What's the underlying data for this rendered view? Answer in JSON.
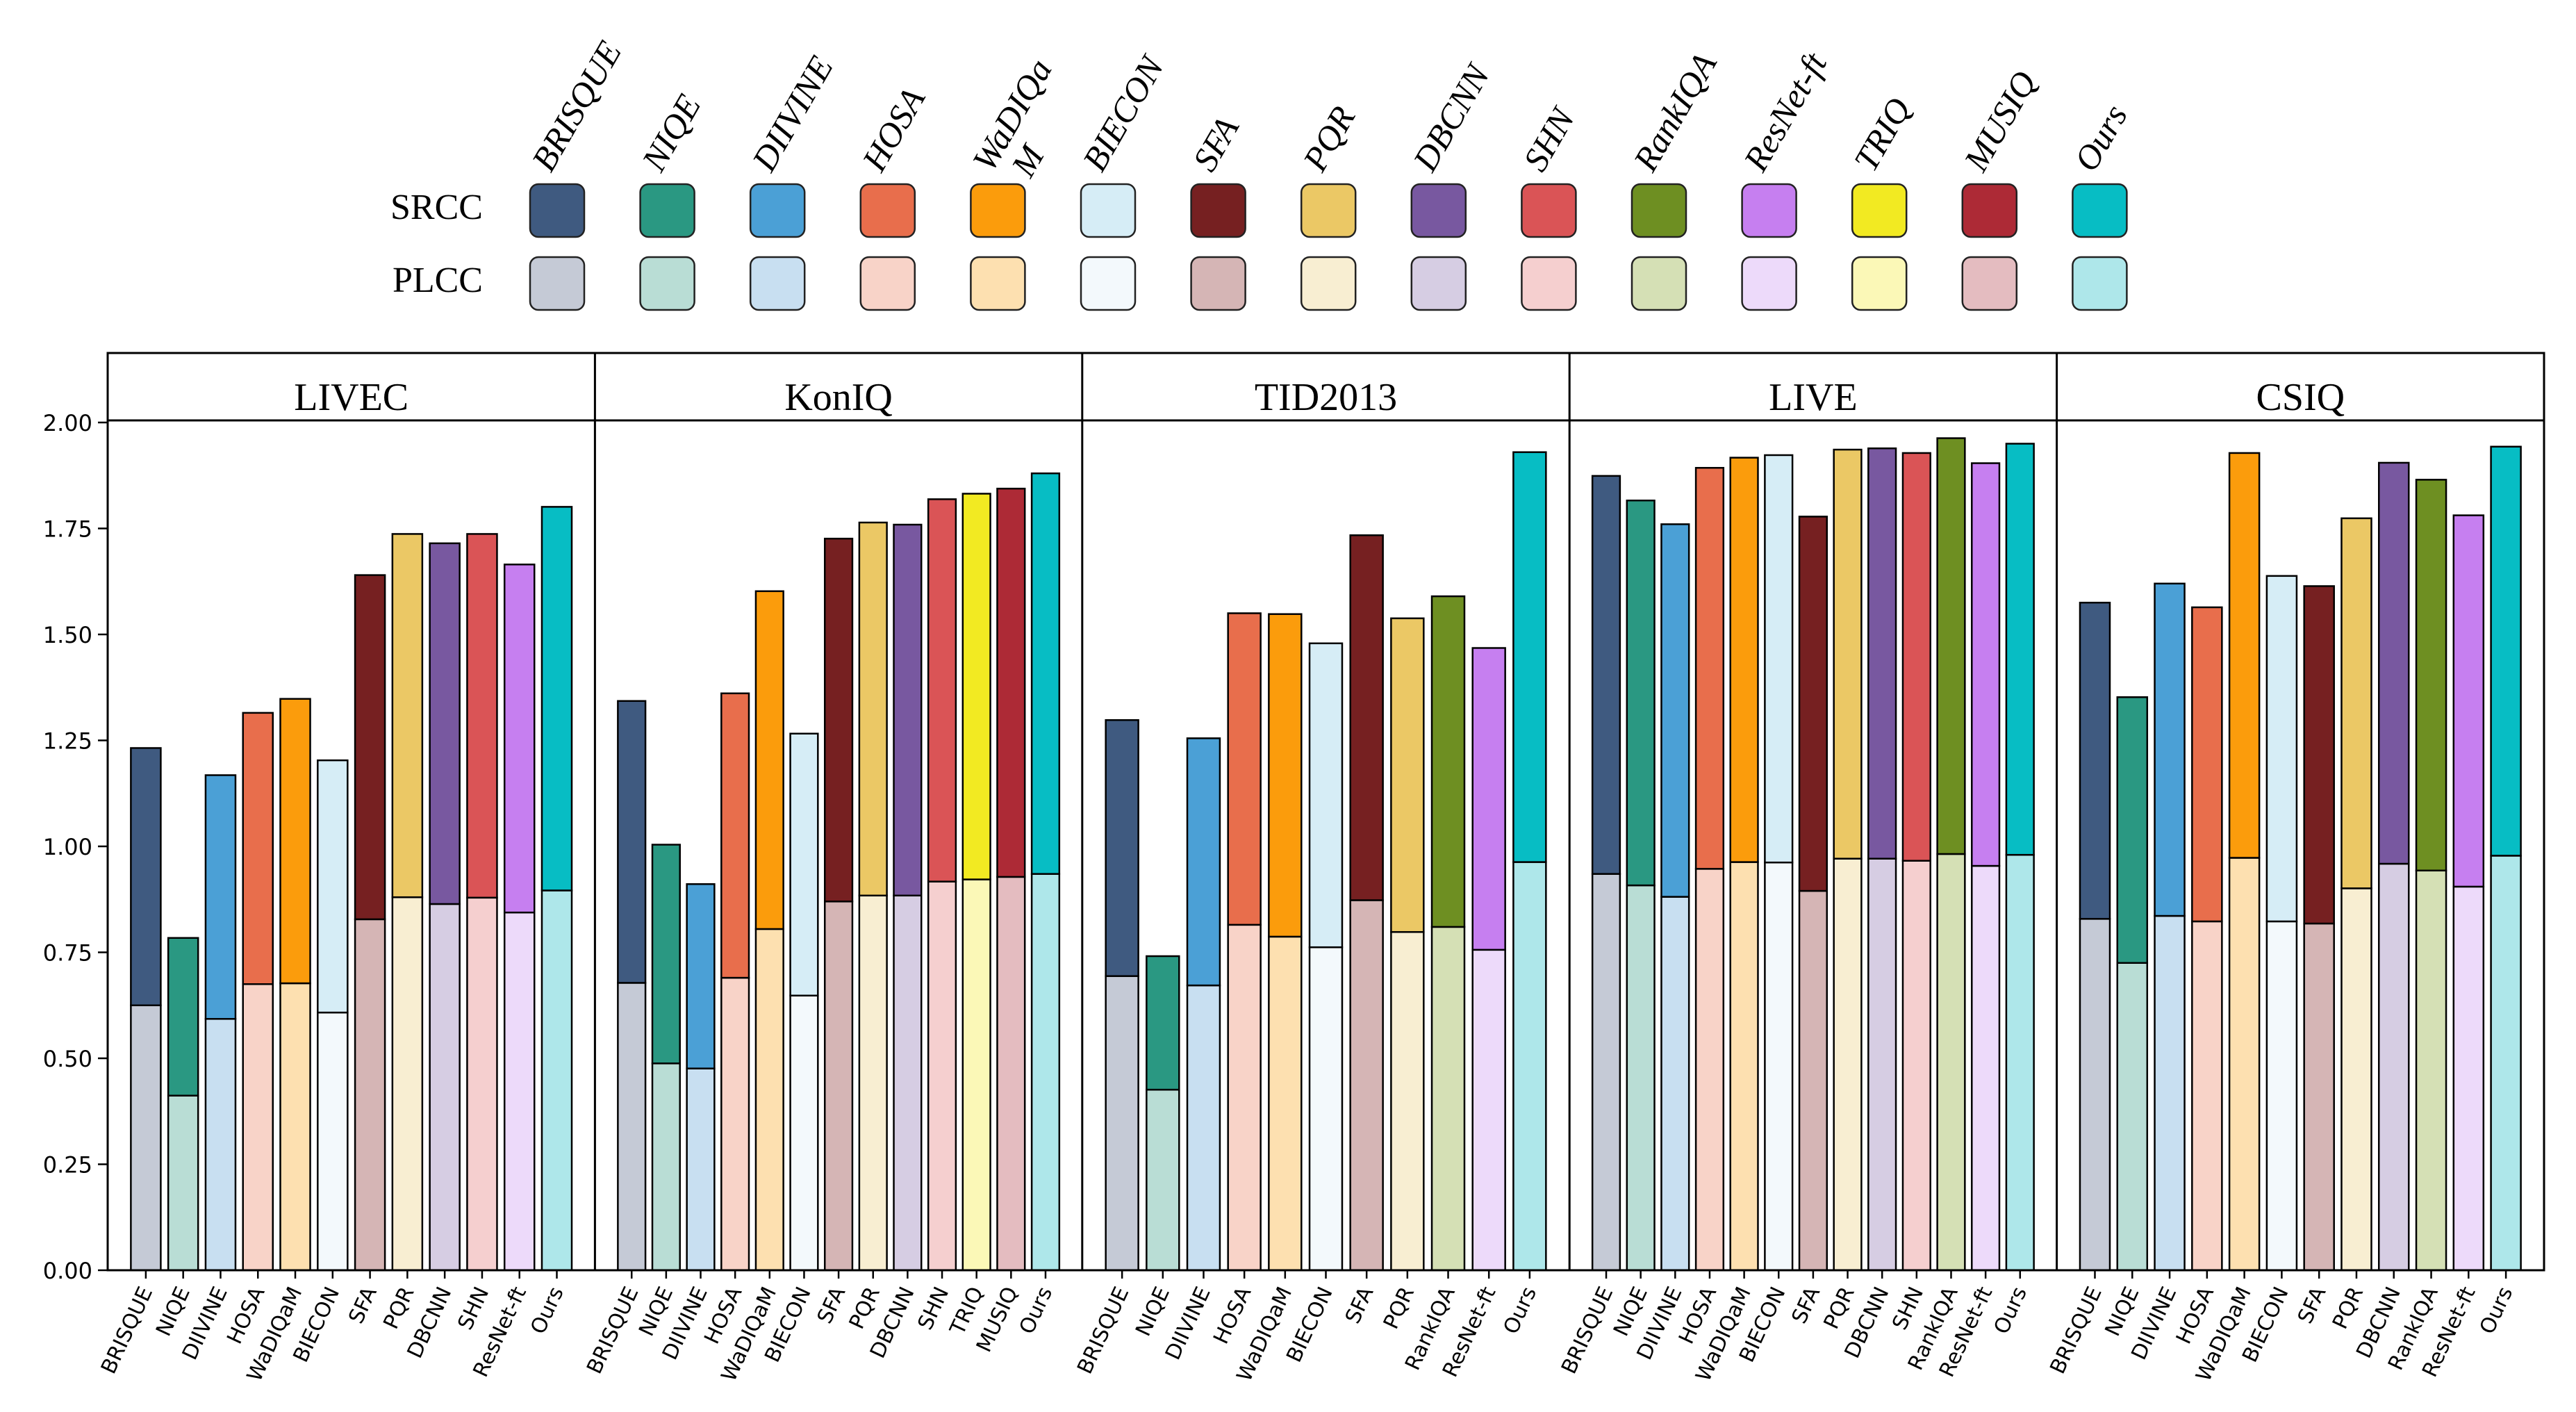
{
  "chart_data": {
    "type": "bar",
    "stacked": true,
    "ylim": [
      0,
      2.0
    ],
    "y_ticks": [
      "0.00",
      "0.25",
      "0.50",
      "0.75",
      "1.00",
      "1.25",
      "1.50",
      "1.75",
      "2.00"
    ],
    "legend": {
      "row_labels": [
        "SRCC",
        "PLCC"
      ],
      "methods": [
        {
          "name": "BRISQUE",
          "srcc_color": "#3f5a80",
          "plcc_color": "#c5cad6"
        },
        {
          "name": "NIQE",
          "srcc_color": "#2a9882",
          "plcc_color": "#b9ddd5"
        },
        {
          "name": "DIIVINE",
          "srcc_color": "#4ba0d6",
          "plcc_color": "#c8dff1"
        },
        {
          "name": "HOSA",
          "srcc_color": "#e86e4c",
          "plcc_color": "#f8d3c8"
        },
        {
          "name": "WaDIQaM",
          "srcc_color": "#fb9c0c",
          "plcc_color": "#fde0b0"
        },
        {
          "name": "BIECON",
          "srcc_color": "#d6edf6",
          "plcc_color": "#f3f9fc"
        },
        {
          "name": "SFA",
          "srcc_color": "#762021",
          "plcc_color": "#d5b5b5"
        },
        {
          "name": "PQR",
          "srcc_color": "#ebc865",
          "plcc_color": "#f8eed2"
        },
        {
          "name": "DBCNN",
          "srcc_color": "#7858a0",
          "plcc_color": "#d6cde3"
        },
        {
          "name": "SHN",
          "srcc_color": "#da5456",
          "plcc_color": "#f5cfcf"
        },
        {
          "name": "RankIQA",
          "srcc_color": "#6e8f22",
          "plcc_color": "#d5e0b5"
        },
        {
          "name": "ResNet-ft",
          "srcc_color": "#c67ff0",
          "plcc_color": "#eddafa"
        },
        {
          "name": "TRIQ",
          "srcc_color": "#f2ea22",
          "plcc_color": "#fbf8b7"
        },
        {
          "name": "MUSIQ",
          "srcc_color": "#ad2a36",
          "plcc_color": "#e4bcc0"
        },
        {
          "name": "Ours",
          "srcc_color": "#07bdc4",
          "plcc_color": "#aee7ea"
        }
      ],
      "method_labels": [
        "BRISQUE",
        "NIQE",
        "DIIVINE",
        "HOSA",
        "WaDIQa",
        "BIECON",
        "SFA",
        "PQR",
        "DBCNN",
        "SHN",
        "RankIQA",
        "ResNet-ft",
        "TRIQ",
        "MUSIQ",
        "Ours"
      ],
      "wrapped_label_continuation": "M"
    },
    "panels": [
      {
        "title": "LIVEC",
        "categories": [
          "BRISQUE",
          "NIQE",
          "DIIVINE",
          "HOSA",
          "WaDIQaM",
          "BIECON",
          "SFA",
          "PQR",
          "DBCNN",
          "SHN",
          "ResNet-ft",
          "Ours"
        ],
        "plcc": [
          0.625,
          0.412,
          0.593,
          0.675,
          0.677,
          0.608,
          0.828,
          0.88,
          0.864,
          0.879,
          0.844,
          0.896
        ],
        "srcc": [
          0.607,
          0.372,
          0.575,
          0.64,
          0.671,
          0.595,
          0.812,
          0.857,
          0.851,
          0.858,
          0.821,
          0.905
        ]
      },
      {
        "title": "KonIQ",
        "categories": [
          "BRISQUE",
          "NIQE",
          "DIIVINE",
          "HOSA",
          "WaDIQaM",
          "BIECON",
          "SFA",
          "PQR",
          "DBCNN",
          "SHN",
          "TRIQ",
          "MUSIQ",
          "Ours"
        ],
        "plcc": [
          0.678,
          0.488,
          0.476,
          0.69,
          0.805,
          0.648,
          0.87,
          0.884,
          0.884,
          0.917,
          0.922,
          0.928,
          0.935
        ],
        "srcc": [
          0.665,
          0.516,
          0.435,
          0.671,
          0.797,
          0.618,
          0.856,
          0.88,
          0.875,
          0.902,
          0.91,
          0.916,
          0.945
        ]
      },
      {
        "title": "TID2013",
        "categories": [
          "BRISQUE",
          "NIQE",
          "DIIVINE",
          "HOSA",
          "WaDIQaM",
          "BIECON",
          "SFA",
          "PQR",
          "RankIQA",
          "ResNet-ft",
          "Ours"
        ],
        "plcc": [
          0.694,
          0.426,
          0.672,
          0.815,
          0.787,
          0.762,
          0.873,
          0.798,
          0.81,
          0.756,
          0.963
        ],
        "srcc": [
          0.604,
          0.315,
          0.583,
          0.735,
          0.761,
          0.717,
          0.861,
          0.74,
          0.78,
          0.712,
          0.967
        ]
      },
      {
        "title": "LIVE",
        "categories": [
          "BRISQUE",
          "NIQE",
          "DIIVINE",
          "HOSA",
          "WaDIQaM",
          "BIECON",
          "SFA",
          "PQR",
          "DBCNN",
          "SHN",
          "RankIQA",
          "ResNet-ft",
          "Ours"
        ],
        "plcc": [
          0.935,
          0.908,
          0.881,
          0.947,
          0.963,
          0.962,
          0.895,
          0.971,
          0.971,
          0.966,
          0.982,
          0.954,
          0.98
        ],
        "srcc": [
          0.939,
          0.908,
          0.879,
          0.946,
          0.954,
          0.961,
          0.883,
          0.965,
          0.968,
          0.962,
          0.981,
          0.95,
          0.97
        ]
      },
      {
        "title": "CSIQ",
        "categories": [
          "BRISQUE",
          "NIQE",
          "DIIVINE",
          "HOSA",
          "WaDIQaM",
          "BIECON",
          "SFA",
          "PQR",
          "DBCNN",
          "RankIQA",
          "ResNet-ft",
          "Ours"
        ],
        "plcc": [
          0.829,
          0.725,
          0.836,
          0.823,
          0.973,
          0.823,
          0.818,
          0.901,
          0.959,
          0.943,
          0.905,
          0.978
        ],
        "srcc": [
          0.746,
          0.627,
          0.784,
          0.741,
          0.955,
          0.815,
          0.796,
          0.873,
          0.946,
          0.922,
          0.876,
          0.965
        ]
      }
    ]
  }
}
